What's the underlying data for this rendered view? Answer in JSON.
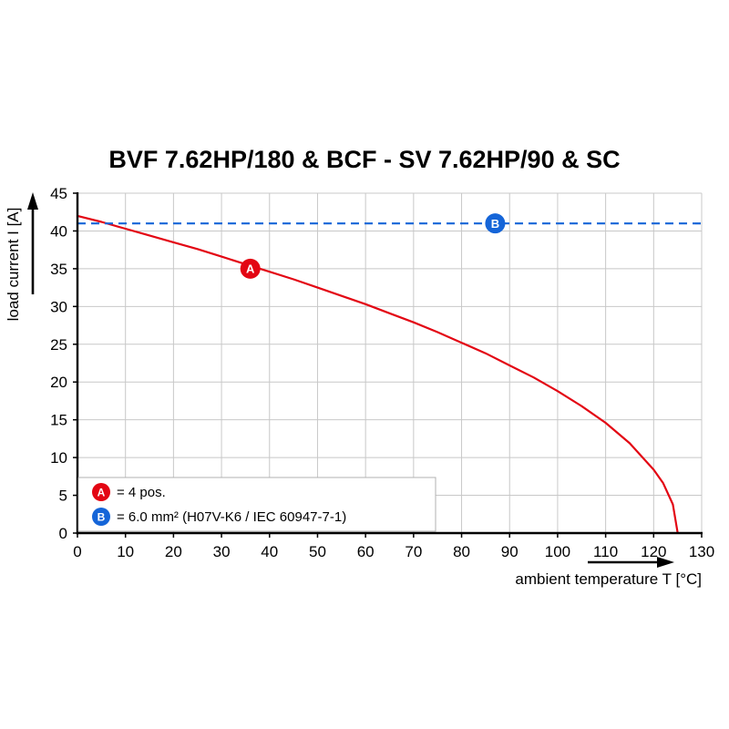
{
  "chart_data": {
    "type": "line",
    "title": "BVF 7.62HP/180 & BCF - SV 7.62HP/90 & SC",
    "xlabel": "ambient temperature T [°C]",
    "ylabel": "load current I [A]",
    "xlim": [
      0,
      130
    ],
    "ylim": [
      0,
      45
    ],
    "xticks": [
      0,
      10,
      20,
      30,
      40,
      50,
      60,
      70,
      80,
      90,
      100,
      110,
      120,
      130
    ],
    "yticks": [
      0,
      5,
      10,
      15,
      20,
      25,
      30,
      35,
      40,
      45
    ],
    "grid": true,
    "grid_color": "#c8c8c8",
    "axis_color": "#000000",
    "series": [
      {
        "name": "A",
        "color": "#e30613",
        "style": "solid",
        "x": [
          0,
          5,
          10,
          15,
          20,
          25,
          30,
          35,
          40,
          45,
          50,
          55,
          60,
          65,
          70,
          75,
          80,
          85,
          90,
          95,
          100,
          105,
          110,
          115,
          120,
          122,
          124,
          125
        ],
        "y": [
          42.0,
          41.2,
          40.3,
          39.4,
          38.5,
          37.6,
          36.6,
          35.6,
          34.6,
          33.6,
          32.5,
          31.4,
          30.3,
          29.1,
          27.9,
          26.6,
          25.2,
          23.8,
          22.2,
          20.6,
          18.8,
          16.8,
          14.6,
          11.9,
          8.4,
          6.6,
          3.8,
          0
        ],
        "marker": {
          "x": 36,
          "y": 35,
          "label": "A"
        }
      },
      {
        "name": "B",
        "color": "#1565d8",
        "style": "dashed",
        "x": [
          0,
          130
        ],
        "y": [
          41,
          41
        ],
        "marker": {
          "x": 87,
          "y": 41,
          "label": "B"
        }
      }
    ],
    "legend": {
      "position": "bottom-left",
      "items": [
        {
          "label": "A",
          "color": "#e30613",
          "text": "= 4 pos."
        },
        {
          "label": "B",
          "color": "#1565d8",
          "text": "= 6.0 mm² (H07V-K6 / IEC 60947-7-1)"
        }
      ]
    }
  }
}
